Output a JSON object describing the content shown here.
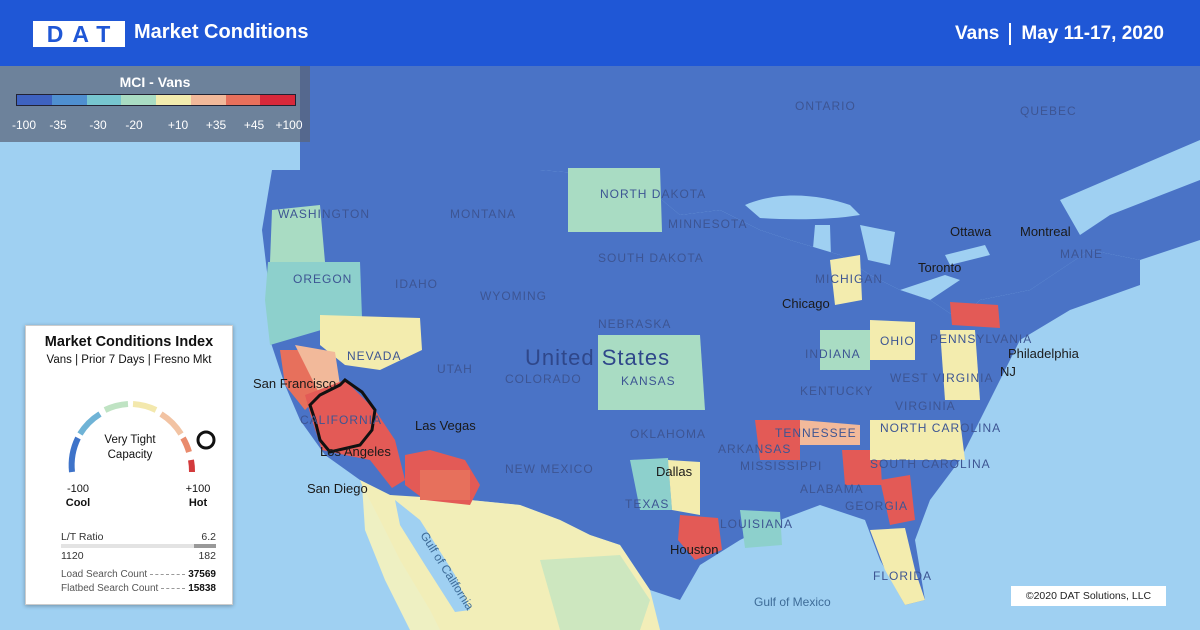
{
  "header": {
    "logo": "DAT",
    "title": "Market Conditions",
    "equipment": "Vans",
    "date_range": "May 11-17, 2020"
  },
  "legend": {
    "title": "MCI - Vans",
    "colors": [
      "#3e62c0",
      "#4f8fd0",
      "#77c5cf",
      "#a9dcc3",
      "#f3ecae",
      "#f2b99a",
      "#e7705c",
      "#d8283a"
    ],
    "ticks": [
      "-100",
      "-35",
      "-30",
      "-20",
      "+10",
      "+35",
      "+45",
      "+100"
    ]
  },
  "card": {
    "title": "Market Conditions Index",
    "subtitle": "Vans |  Prior 7 Days | Fresno Mkt",
    "status": "Very Tight Capacity",
    "gauge_value": 100,
    "min_value": "-100",
    "min_label": "Cool",
    "max_value": "+100",
    "max_label": "Hot",
    "lt_ratio_label": "L/T Ratio",
    "lt_ratio_value": "6.2",
    "trucks": "1120",
    "loads": "182",
    "load_search_label": "Load Search Count",
    "load_search_value": "37569",
    "flatbed_search_label": "Flatbed Search Count",
    "flatbed_search_value": "15838"
  },
  "map": {
    "country_label": "United States",
    "region_labels": [
      "ONTARIO",
      "QUEBEC",
      "NORTH DAKOTA",
      "SOUTH DAKOTA",
      "MONTANA",
      "WASHINGTON",
      "OREGON",
      "IDAHO",
      "WYOMING",
      "NEBRASKA",
      "NEVADA",
      "UTAH",
      "COLORADO",
      "KANSAS",
      "CALIFORNIA",
      "OKLAHOMA",
      "NEW MEXICO",
      "TEXAS",
      "ARKANSAS",
      "TENNESSEE",
      "MISSISSIPPI",
      "ALABAMA",
      "GEORGIA",
      "LOUISIANA",
      "FLORIDA",
      "MICHIGAN",
      "INDIANA",
      "OHIO",
      "KENTUCKY",
      "VIRGINIA",
      "NORTH CAROLINA",
      "SOUTH CAROLINA",
      "MAINE",
      "MINNESOTA",
      "WEST VIRGINIA",
      "PENNSYLVANIA"
    ],
    "cities": [
      "San Francisco",
      "Los Angeles",
      "Las Vegas",
      "San Diego",
      "Dallas",
      "Houston",
      "Chicago",
      "Toronto",
      "Ottawa",
      "Montreal",
      "Philadelphia",
      "NJ"
    ],
    "water": [
      "Gulf of California",
      "Gulf of Mexico"
    ],
    "copyright": "©2020 DAT Solutions, LLC"
  }
}
